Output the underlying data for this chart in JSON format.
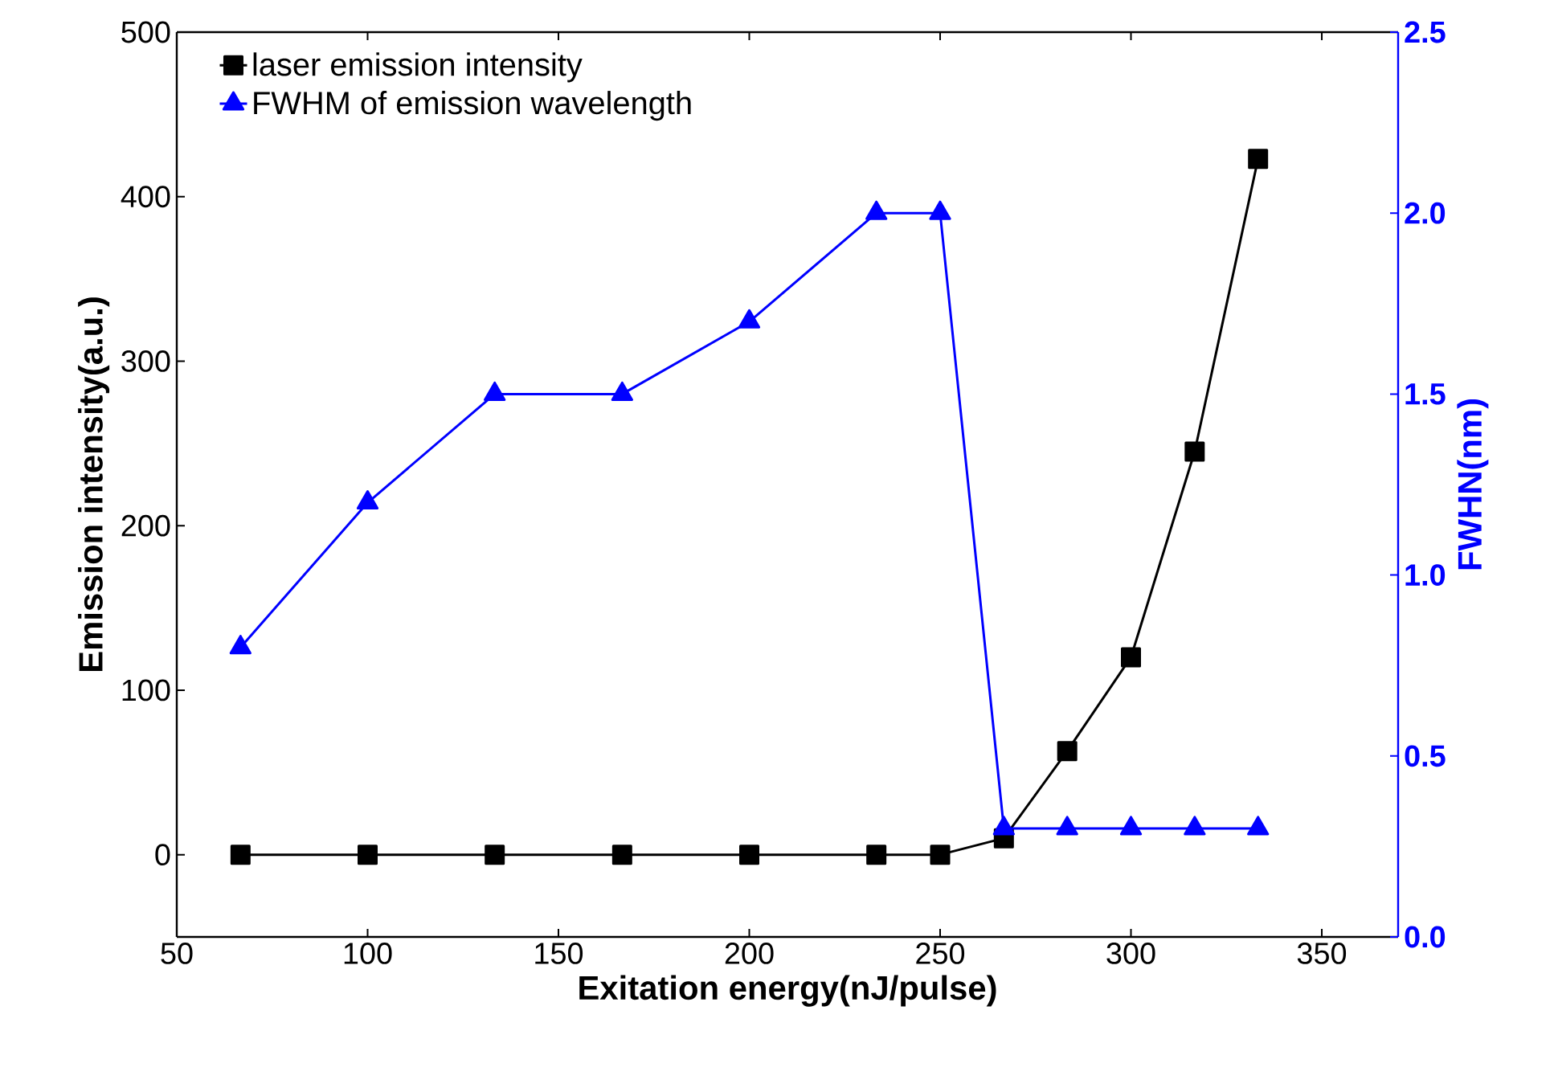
{
  "chart_data": {
    "type": "line",
    "xlabel": "Exitation energy(nJ/pulse)",
    "ylabel": "Emission intensity(a.u.)",
    "y2label": "FWHN(nm)",
    "x": [
      66.7,
      100,
      133.3,
      166.7,
      200,
      233.3,
      250,
      266.7,
      283.3,
      300,
      316.7,
      333.3
    ],
    "series": [
      {
        "name": "laser emission intensity",
        "color": "#000000",
        "marker": "square",
        "values": [
          0,
          0,
          0,
          0,
          0,
          0,
          0,
          10,
          63,
          120,
          245,
          423
        ]
      },
      {
        "name": "FWHM of emission wavelength",
        "color": "#0000ff",
        "marker": "triangle",
        "axis": "y2",
        "values": [
          0.8,
          1.2,
          1.5,
          1.5,
          1.7,
          2.0,
          2.0,
          0.3,
          0.3,
          0.3,
          0.3,
          0.3
        ]
      }
    ],
    "xlim": [
      50,
      370
    ],
    "xticks": [
      50,
      100,
      150,
      200,
      250,
      300,
      350
    ],
    "ylim": [
      -50,
      500
    ],
    "yticks": [
      0,
      100,
      200,
      300,
      400,
      500
    ],
    "y2lim": [
      0,
      2.5
    ],
    "y2ticks": [
      {
        "value": 0,
        "label": "0.0"
      },
      {
        "value": 0.5,
        "label": "0.5"
      },
      {
        "value": 1,
        "label": "1.0"
      },
      {
        "value": 1.5,
        "label": "1.5"
      },
      {
        "value": 2,
        "label": "2.0"
      },
      {
        "value": 2.5,
        "label": "2.5"
      }
    ],
    "grid": false,
    "legend": "top left"
  }
}
